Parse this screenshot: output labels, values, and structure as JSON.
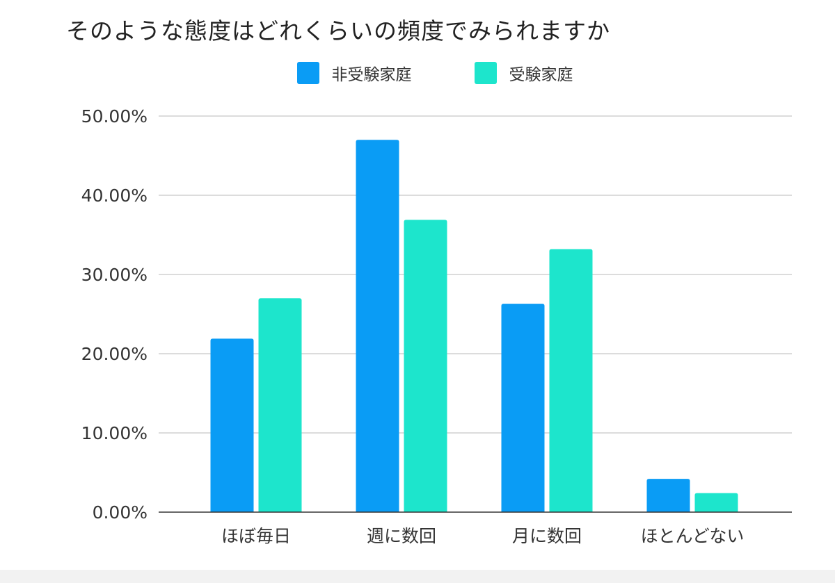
{
  "chart_data": {
    "type": "bar",
    "title": "そのような態度はどれくらいの頻度でみられますか",
    "categories": [
      "ほぼ毎日",
      "週に数回",
      "月に数回",
      "ほとんどない"
    ],
    "series": [
      {
        "name": "非受験家庭",
        "color": "#0a9cf5",
        "values": [
          21.9,
          47.0,
          26.3,
          4.2
        ]
      },
      {
        "name": "受験家庭",
        "color": "#1de5cc",
        "values": [
          27.0,
          36.9,
          33.2,
          2.4
        ]
      }
    ],
    "yticks": [
      "0.00%",
      "10.00%",
      "20.00%",
      "30.00%",
      "40.00%",
      "50.00%"
    ],
    "ylim": [
      0,
      50
    ],
    "grid": true,
    "legend": "top-center",
    "xlabel": "",
    "ylabel": ""
  }
}
